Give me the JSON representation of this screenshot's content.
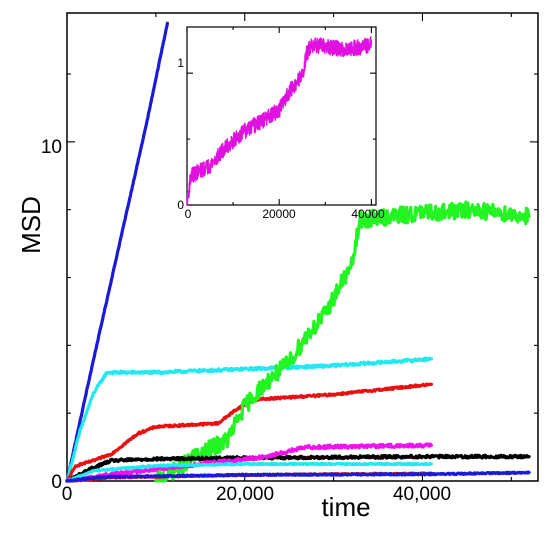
{
  "chart_data": [
    {
      "type": "line",
      "title": "",
      "xlabel": "time",
      "ylabel": "MSD",
      "xlim": [
        0,
        53000
      ],
      "ylim": [
        0,
        13.8
      ],
      "x_ticks": [
        0,
        20000,
        40000
      ],
      "x_tick_labels": [
        "0",
        "20,000",
        "40,000"
      ],
      "y_ticks": [
        0,
        10
      ],
      "y_tick_labels": [
        "0",
        "10"
      ],
      "grid": false,
      "legend": "none",
      "series": [
        {
          "color": "#1a1ad8",
          "noise": 0.02,
          "points": [
            [
              0,
              0
            ],
            [
              1000,
              1.2
            ],
            [
              3000,
              3.6
            ],
            [
              6000,
              7.1
            ],
            [
              9000,
              10.6
            ],
            [
              11300,
              13.5
            ]
          ]
        },
        {
          "color": "#22e8f0",
          "noise": 0.04,
          "points": [
            [
              0,
              0
            ],
            [
              1500,
              1.5
            ],
            [
              3000,
              2.6
            ],
            [
              4500,
              3.2
            ],
            [
              10000,
              3.2
            ],
            [
              20000,
              3.3
            ],
            [
              30000,
              3.4
            ],
            [
              41000,
              3.6
            ]
          ]
        },
        {
          "color": "#e81010",
          "noise": 0.03,
          "points": [
            [
              0,
              0
            ],
            [
              1000,
              0.45
            ],
            [
              3000,
              0.6
            ],
            [
              5000,
              0.8
            ],
            [
              8000,
              1.4
            ],
            [
              10000,
              1.6
            ],
            [
              17000,
              1.7
            ],
            [
              19000,
              2.1
            ],
            [
              21000,
              2.4
            ],
            [
              30000,
              2.55
            ],
            [
              41000,
              2.85
            ]
          ]
        },
        {
          "color": "#22f522",
          "noise": 0.25,
          "points": [
            [
              10000,
              0
            ],
            [
              12000,
              0.3
            ],
            [
              15000,
              0.8
            ],
            [
              18000,
              1.2
            ],
            [
              20000,
              2.2
            ],
            [
              22000,
              2.8
            ],
            [
              25000,
              3.5
            ],
            [
              27000,
              4.3
            ],
            [
              29000,
              4.9
            ],
            [
              31000,
              5.9
            ],
            [
              32000,
              6.3
            ],
            [
              33000,
              7.7
            ],
            [
              40000,
              7.9
            ],
            [
              46000,
              8.0
            ],
            [
              52000,
              7.8
            ]
          ]
        },
        {
          "color": "#000000",
          "noise": 0.04,
          "points": [
            [
              0,
              0
            ],
            [
              3000,
              0.4
            ],
            [
              5000,
              0.6
            ],
            [
              10000,
              0.65
            ],
            [
              20000,
              0.68
            ],
            [
              30000,
              0.7
            ],
            [
              40000,
              0.72
            ],
            [
              52000,
              0.72
            ]
          ]
        },
        {
          "color": "#f010f0",
          "noise": 0.05,
          "points": [
            [
              0,
              0
            ],
            [
              5000,
              0.2
            ],
            [
              15000,
              0.5
            ],
            [
              22000,
              0.7
            ],
            [
              27000,
              1.0
            ],
            [
              41000,
              1.05
            ]
          ]
        },
        {
          "color": "#22e8f0",
          "noise": 0.02,
          "points": [
            [
              0,
              0
            ],
            [
              3000,
              0.3
            ],
            [
              10000,
              0.45
            ],
            [
              20000,
              0.5
            ],
            [
              41000,
              0.5
            ]
          ]
        },
        {
          "color": "#e81010",
          "noise": 0.02,
          "points": [
            [
              0,
              0
            ],
            [
              5000,
              0.1
            ],
            [
              20000,
              0.18
            ],
            [
              41000,
              0.22
            ]
          ]
        },
        {
          "color": "#1a1ad8",
          "noise": 0.02,
          "points": [
            [
              0,
              0
            ],
            [
              4000,
              0.12
            ],
            [
              20000,
              0.18
            ],
            [
              41000,
              0.2
            ],
            [
              52000,
              0.25
            ]
          ]
        }
      ]
    },
    {
      "type": "line",
      "title": "",
      "xlabel": "",
      "ylabel": "",
      "xlim": [
        0,
        41000
      ],
      "ylim": [
        0,
        1.35
      ],
      "x_ticks": [
        0,
        20000,
        40000
      ],
      "x_tick_labels": [
        "0",
        "20000",
        "40000"
      ],
      "y_ticks": [
        0,
        1
      ],
      "y_tick_labels": [
        "0",
        "1"
      ],
      "grid": false,
      "legend": "none",
      "series": [
        {
          "color": "#e010e0",
          "noise": 0.06,
          "points": [
            [
              0,
              0
            ],
            [
              800,
              0.22
            ],
            [
              5000,
              0.3
            ],
            [
              8000,
              0.42
            ],
            [
              12000,
              0.55
            ],
            [
              17000,
              0.65
            ],
            [
              20000,
              0.72
            ],
            [
              22000,
              0.85
            ],
            [
              25000,
              0.98
            ],
            [
              26000,
              1.15
            ],
            [
              27000,
              1.22
            ],
            [
              30000,
              1.2
            ],
            [
              34000,
              1.18
            ],
            [
              38000,
              1.2
            ],
            [
              40000,
              1.22
            ]
          ]
        }
      ]
    }
  ]
}
